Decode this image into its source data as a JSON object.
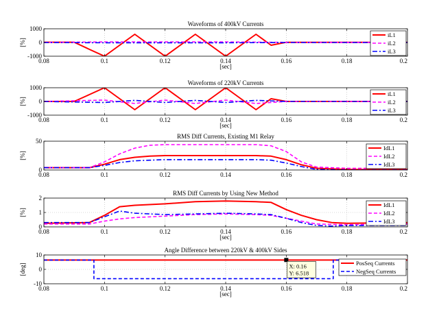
{
  "chart_data": [
    {
      "type": "line",
      "title": "Waveforms of 400kV Currents",
      "xlabel": "[sec]",
      "ylabel": "[%]",
      "xlim": [
        0.08,
        0.2
      ],
      "ylim": [
        -1000,
        1000
      ],
      "xticks": [
        0.08,
        0.1,
        0.12,
        0.14,
        0.16,
        0.18,
        0.2
      ],
      "xtick_labels": [
        "0.08",
        "0.1",
        "0.12",
        "0.14",
        "0.16",
        "0.18",
        "0.2"
      ],
      "yticks": [
        -1000,
        0,
        1000
      ],
      "ytick_labels": [
        "-1000",
        "0",
        "1000"
      ],
      "grid": true,
      "legend_position": "top-right",
      "series": [
        {
          "name": "iL1",
          "color": "#ff0000",
          "style": "solid",
          "x": [
            0.08,
            0.09,
            0.095,
            0.1,
            0.105,
            0.11,
            0.115,
            0.12,
            0.125,
            0.13,
            0.135,
            0.14,
            0.145,
            0.15,
            0.155,
            0.16,
            0.17,
            0.18,
            0.19,
            0.2
          ],
          "y": [
            20,
            20,
            -500,
            -1000,
            -200,
            600,
            -200,
            -1000,
            -200,
            600,
            -200,
            -1000,
            -200,
            600,
            -200,
            15,
            10,
            10,
            10,
            10
          ]
        },
        {
          "name": "iL2",
          "color": "#ff00ff",
          "style": "dashed",
          "x": [
            0.08,
            0.1,
            0.12,
            0.14,
            0.16,
            0.18,
            0.2
          ],
          "y": [
            10,
            40,
            40,
            40,
            10,
            10,
            10
          ]
        },
        {
          "name": "iL3",
          "color": "#0000ff",
          "style": "dashdot",
          "x": [
            0.08,
            0.1,
            0.12,
            0.14,
            0.16,
            0.18,
            0.2
          ],
          "y": [
            0,
            -20,
            -20,
            -20,
            0,
            0,
            0
          ]
        }
      ]
    },
    {
      "type": "line",
      "title": "Waveforms of 220kV Currents",
      "xlabel": "[sec]",
      "ylabel": "[%]",
      "xlim": [
        0.08,
        0.2
      ],
      "ylim": [
        -1000,
        1000
      ],
      "xticks": [
        0.08,
        0.1,
        0.12,
        0.14,
        0.16,
        0.18,
        0.2
      ],
      "xtick_labels": [
        "0.08",
        "0.1",
        "0.12",
        "0.14",
        "0.16",
        "0.18",
        "0.2"
      ],
      "yticks": [
        -1000,
        0,
        1000
      ],
      "ytick_labels": [
        "-1000",
        "0",
        "1000"
      ],
      "grid": true,
      "legend_position": "top-right",
      "series": [
        {
          "name": "iL1",
          "color": "#ff0000",
          "style": "solid",
          "x": [
            0.08,
            0.09,
            0.095,
            0.1,
            0.105,
            0.11,
            0.115,
            0.12,
            0.125,
            0.13,
            0.135,
            0.14,
            0.145,
            0.15,
            0.155,
            0.16,
            0.17,
            0.18,
            0.19,
            0.2
          ],
          "y": [
            0,
            0,
            500,
            1000,
            200,
            -600,
            200,
            1000,
            200,
            -600,
            200,
            1000,
            200,
            -600,
            200,
            0,
            0,
            0,
            0,
            0
          ]
        },
        {
          "name": "iL2",
          "color": "#ff00ff",
          "style": "dashed",
          "x": [
            0.08,
            0.1,
            0.11,
            0.12,
            0.13,
            0.14,
            0.15,
            0.16,
            0.18,
            0.2
          ],
          "y": [
            0,
            100,
            -150,
            100,
            -150,
            100,
            -150,
            0,
            0,
            0
          ]
        },
        {
          "name": "iL3",
          "color": "#0000ff",
          "style": "dashdot",
          "x": [
            0.08,
            0.1,
            0.11,
            0.12,
            0.13,
            0.14,
            0.15,
            0.16,
            0.18,
            0.2
          ],
          "y": [
            0,
            -80,
            80,
            -80,
            80,
            -80,
            80,
            0,
            0,
            0
          ]
        }
      ]
    },
    {
      "type": "line",
      "title": "RMS Diff Currents, Existing M1 Relay",
      "xlabel": "",
      "ylabel": "[%]",
      "xlim": [
        0.08,
        0.2
      ],
      "ylim": [
        0,
        50
      ],
      "xticks": [
        0.08,
        0.1,
        0.12,
        0.14,
        0.16,
        0.18,
        0.2
      ],
      "xtick_labels": [
        "0.08",
        "0.1",
        "0.12",
        "0.14",
        "0.16",
        "0.18",
        "0.2"
      ],
      "yticks": [
        0,
        50
      ],
      "ytick_labels": [
        "0",
        "50"
      ],
      "grid": true,
      "legend_position": "top-right",
      "series": [
        {
          "name": "IdL1",
          "color": "#ff0000",
          "style": "solid",
          "x": [
            0.08,
            0.095,
            0.1,
            0.105,
            0.11,
            0.115,
            0.12,
            0.15,
            0.155,
            0.16,
            0.165,
            0.17,
            0.18,
            0.2
          ],
          "y": [
            4,
            4,
            10,
            18,
            22,
            24,
            25,
            25,
            24,
            18,
            9,
            3,
            1,
            1
          ]
        },
        {
          "name": "IdL2",
          "color": "#ff00ff",
          "style": "dashed",
          "x": [
            0.08,
            0.095,
            0.1,
            0.105,
            0.11,
            0.115,
            0.12,
            0.15,
            0.155,
            0.16,
            0.165,
            0.17,
            0.18,
            0.2
          ],
          "y": [
            4,
            4,
            14,
            28,
            38,
            43,
            44,
            44,
            42,
            32,
            14,
            5,
            3,
            3
          ]
        },
        {
          "name": "IdL3",
          "color": "#0000ff",
          "style": "dashdot",
          "x": [
            0.08,
            0.095,
            0.1,
            0.105,
            0.11,
            0.115,
            0.12,
            0.15,
            0.155,
            0.16,
            0.165,
            0.17,
            0.18,
            0.2
          ],
          "y": [
            4,
            4,
            8,
            13,
            16,
            17,
            18,
            18,
            17,
            12,
            6,
            1,
            0,
            0
          ]
        }
      ]
    },
    {
      "type": "line",
      "title": "RMS Diff Currents by Using New Method",
      "xlabel": "[sec]",
      "ylabel": "[%]",
      "xlim": [
        0.08,
        0.2
      ],
      "ylim": [
        0,
        2
      ],
      "xticks": [
        0.08,
        0.1,
        0.12,
        0.14,
        0.16,
        0.18,
        0.2
      ],
      "xtick_labels": [
        "0.08",
        "0.1",
        "0.12",
        "0.14",
        "0.16",
        "0.18",
        "0.2"
      ],
      "yticks": [
        0,
        1,
        2
      ],
      "ytick_labels": [
        "0",
        "1",
        "2"
      ],
      "grid": true,
      "legend_position": "top-right",
      "series": [
        {
          "name": "IdL1",
          "color": "#ff0000",
          "style": "solid",
          "x": [
            0.08,
            0.095,
            0.1,
            0.105,
            0.11,
            0.12,
            0.13,
            0.14,
            0.15,
            0.155,
            0.16,
            0.165,
            0.17,
            0.175,
            0.18,
            0.2
          ],
          "y": [
            0.25,
            0.3,
            0.8,
            1.4,
            1.5,
            1.6,
            1.75,
            1.8,
            1.75,
            1.7,
            1.2,
            0.8,
            0.5,
            0.3,
            0.25,
            0.3
          ]
        },
        {
          "name": "IdL2",
          "color": "#ff00ff",
          "style": "dashed",
          "x": [
            0.08,
            0.095,
            0.1,
            0.105,
            0.11,
            0.12,
            0.13,
            0.14,
            0.15,
            0.155,
            0.16,
            0.165,
            0.17,
            0.18,
            0.2
          ],
          "y": [
            0.2,
            0.2,
            0.4,
            0.55,
            0.65,
            0.75,
            0.85,
            0.9,
            0.85,
            0.8,
            0.6,
            0.4,
            0.2,
            0.15,
            0.2
          ]
        },
        {
          "name": "IdL3",
          "color": "#0000ff",
          "style": "dashdot",
          "x": [
            0.08,
            0.095,
            0.1,
            0.105,
            0.11,
            0.12,
            0.13,
            0.14,
            0.15,
            0.155,
            0.16,
            0.165,
            0.17,
            0.175,
            0.18,
            0.2
          ],
          "y": [
            0.3,
            0.3,
            0.7,
            1.1,
            0.95,
            0.85,
            0.9,
            0.95,
            0.9,
            0.85,
            0.6,
            0.3,
            0.1,
            0.05,
            0.1,
            0.1
          ]
        }
      ]
    },
    {
      "type": "line",
      "title": "Angle Difference between 220kV & 400kV Sides",
      "xlabel": "[sec]",
      "ylabel": "[deg]",
      "xlim": [
        0.08,
        0.2
      ],
      "ylim": [
        -10,
        10
      ],
      "xticks": [
        0.08,
        0.1,
        0.12,
        0.14,
        0.16,
        0.18,
        0.2
      ],
      "xtick_labels": [
        "0.08",
        "0.1",
        "0.12",
        "0.14",
        "0.16",
        "0.18",
        "0.2"
      ],
      "yticks": [
        -10,
        0,
        10
      ],
      "ytick_labels": [
        "-10",
        "0",
        "10"
      ],
      "grid": true,
      "legend_position": "right",
      "series": [
        {
          "name": "PosSeq Currents",
          "color": "#ff0000",
          "style": "solid",
          "x": [
            0.08,
            0.2
          ],
          "y": [
            6.5,
            6.5
          ]
        },
        {
          "name": "NegSeq Currents",
          "color": "#0000ff",
          "style": "dashed",
          "x": [
            0.08,
            0.0965,
            0.0965,
            0.1755,
            0.1755,
            0.2
          ],
          "y": [
            6.5,
            6.5,
            -6.5,
            -6.5,
            6.5,
            6.5
          ]
        }
      ],
      "datatip": {
        "x": 0.16,
        "y": 6.518,
        "x_label": "X: 0.16",
        "y_label": "Y: 6.518"
      }
    }
  ]
}
